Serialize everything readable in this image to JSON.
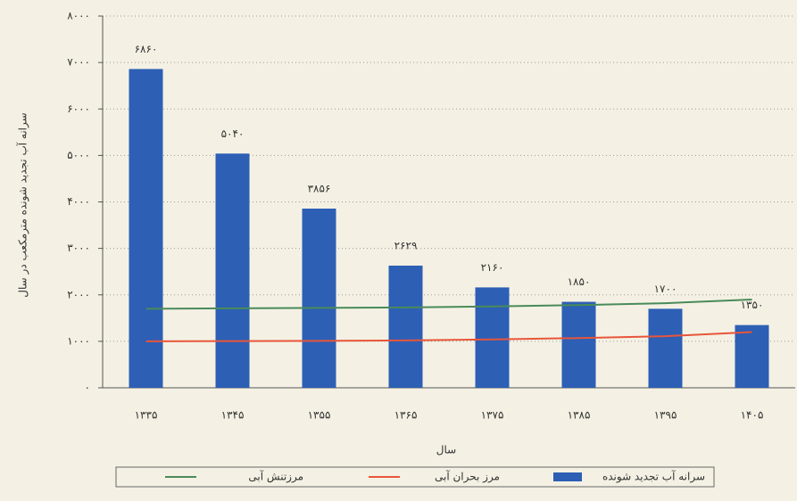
{
  "chart_data": {
    "type": "bar",
    "y_label": "سرانه آب تجدید شونده مترمکعب در سال",
    "x_label": "سال",
    "categories": [
      "۱۳۳۵",
      "۱۳۴۵",
      "۱۳۵۵",
      "۱۳۶۵",
      "۱۳۷۵",
      "۱۳۸۵",
      "۱۳۹۵",
      "۱۴۰۵"
    ],
    "series": [
      {
        "name": "سرانه آب تجدید شونده",
        "kind": "bar",
        "color": "#2d5fb5",
        "values": [
          6860,
          5040,
          3856,
          2629,
          2160,
          1850,
          1700,
          1350
        ],
        "value_labels": [
          "۶۸۶۰",
          "۵۰۴۰",
          "۳۸۵۶",
          "۲۶۲۹",
          "۲۱۶۰",
          "۱۸۵۰",
          "۱۷۰۰",
          "۱۳۵۰"
        ]
      },
      {
        "name": "مرز بحران آبی",
        "kind": "line",
        "color": "#e8553a",
        "values": [
          1000,
          1005,
          1010,
          1020,
          1040,
          1070,
          1110,
          1200
        ]
      },
      {
        "name": "مرزتنش آبی",
        "kind": "line",
        "color": "#4a8a5a",
        "values": [
          1700,
          1710,
          1720,
          1730,
          1750,
          1780,
          1820,
          1900
        ]
      }
    ],
    "ylim": [
      0,
      8000
    ],
    "yticks": [
      {
        "value": 0,
        "label": "۰"
      },
      {
        "value": 1000,
        "label": "۱۰۰۰"
      },
      {
        "value": 2000,
        "label": "۲۰۰۰"
      },
      {
        "value": 3000,
        "label": "۳۰۰۰"
      },
      {
        "value": 4000,
        "label": "۴۰۰۰"
      },
      {
        "value": 5000,
        "label": "۵۰۰۰"
      },
      {
        "value": 6000,
        "label": "۶۰۰۰"
      },
      {
        "value": 7000,
        "label": "۷۰۰۰"
      },
      {
        "value": 8000,
        "label": "۸۰۰۰"
      }
    ],
    "grid": true
  }
}
